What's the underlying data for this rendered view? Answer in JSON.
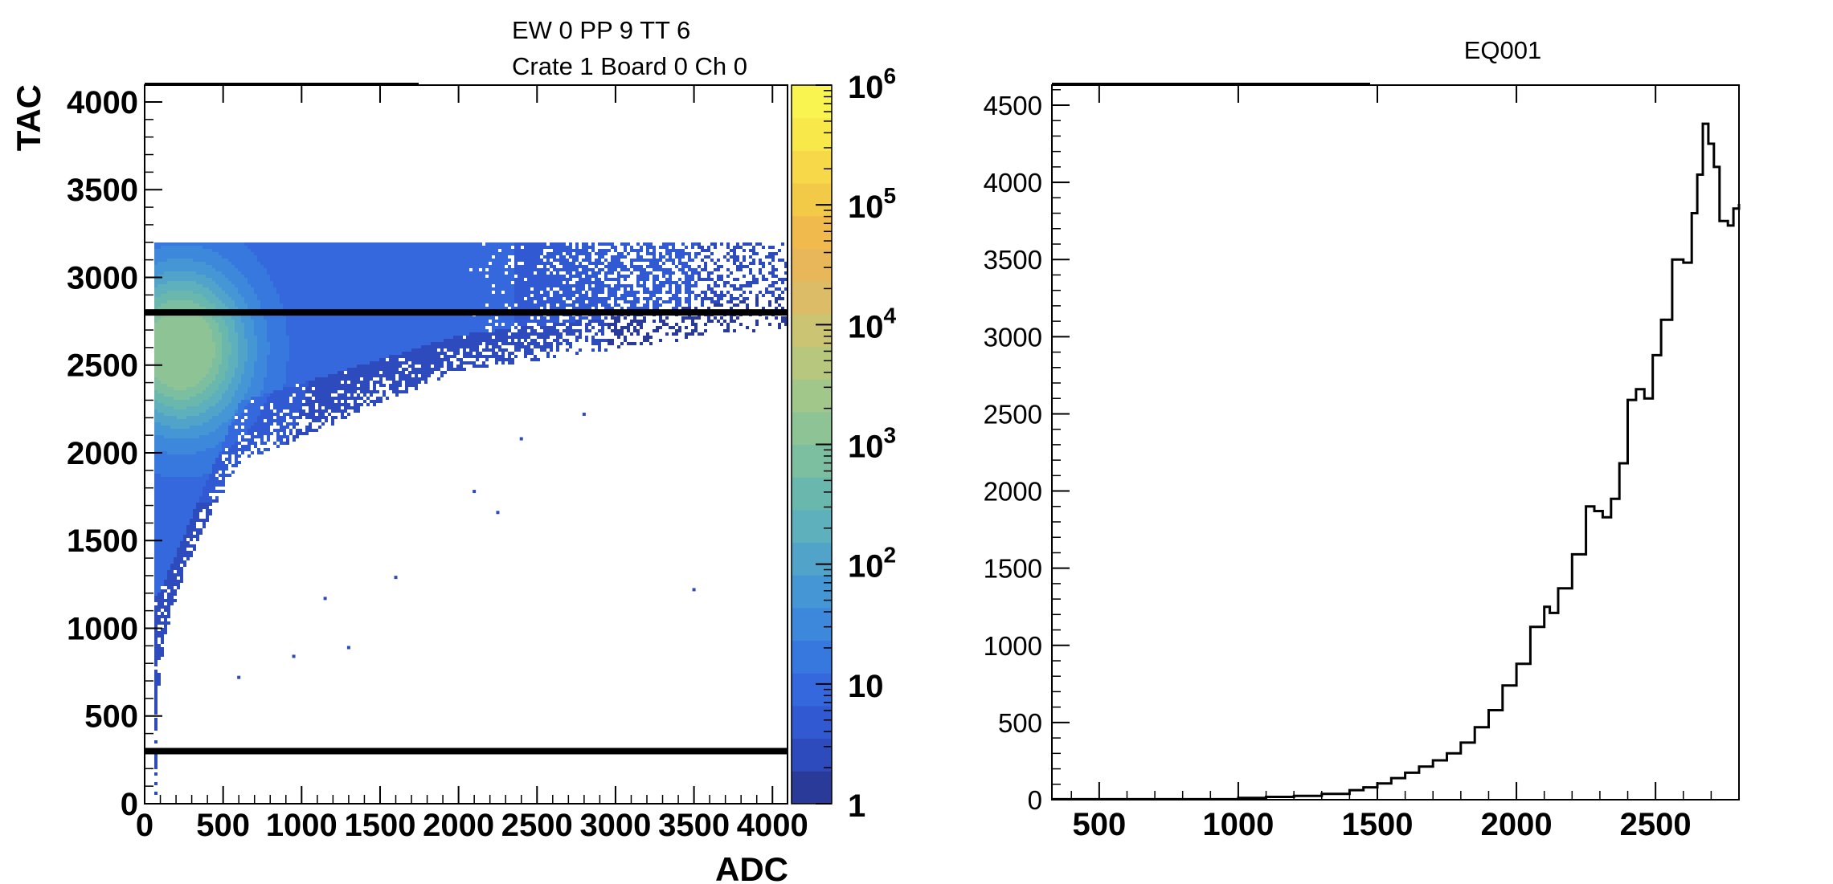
{
  "chart_data": [
    {
      "type": "heatmap",
      "title_lines": [
        "EW 0 PP 9 TT 6",
        "Crate 1 Board 0 Ch 0"
      ],
      "xlabel": "ADC",
      "ylabel": "TAC",
      "xlim": [
        0,
        4096
      ],
      "ylim": [
        0,
        4096
      ],
      "xticks": [
        0,
        500,
        1000,
        1500,
        2000,
        2500,
        3000,
        3500,
        4000
      ],
      "yticks": [
        0,
        500,
        1000,
        1500,
        2000,
        2500,
        3000,
        3500,
        4000
      ],
      "z_scale": "log",
      "zlim": [
        1,
        1000000
      ],
      "colorbar_ticks": [
        {
          "value": 1,
          "label": "1"
        },
        {
          "value": 10,
          "label": "10"
        },
        {
          "value": 100,
          "base": "10",
          "exp": "2"
        },
        {
          "value": 1000,
          "base": "10",
          "exp": "3"
        },
        {
          "value": 10000,
          "base": "10",
          "exp": "4"
        },
        {
          "value": 100000,
          "base": "10",
          "exp": "5"
        },
        {
          "value": 1000000,
          "base": "10",
          "exp": "6"
        }
      ],
      "palette": [
        "#2a3a99",
        "#2d4bbd",
        "#3159d2",
        "#3468dc",
        "#3778de",
        "#3d88db",
        "#4596d4",
        "#51a3c9",
        "#5db0bc",
        "#6ab8ad",
        "#7bbfa0",
        "#8ec495",
        "#a2c78a",
        "#b7c77e",
        "#cbc473",
        "#dcbc66",
        "#e8b75a",
        "#f0bb4c",
        "#f3c948",
        "#f6d848",
        "#f8e84a",
        "#f9f44f"
      ],
      "horizontal_lines": [
        300,
        2800
      ],
      "band_top": 3200,
      "outlier_points": [
        [
          3500,
          1220
        ],
        [
          2250,
          1660
        ],
        [
          2100,
          1780
        ],
        [
          1600,
          1290
        ],
        [
          1300,
          890
        ],
        [
          1150,
          1170
        ],
        [
          2800,
          2220
        ],
        [
          2400,
          2080
        ],
        [
          950,
          840
        ],
        [
          600,
          720
        ]
      ]
    },
    {
      "type": "histogram",
      "title": "EQ001",
      "xlim": [
        330,
        2800
      ],
      "ylim": [
        0,
        4630
      ],
      "xticks": [
        500,
        1000,
        1500,
        2000,
        2500
      ],
      "yticks": [
        0,
        500,
        1000,
        1500,
        2000,
        2500,
        3000,
        3500,
        4000,
        4500
      ],
      "points": [
        [
          330,
          3
        ],
        [
          800,
          3
        ],
        [
          1000,
          12
        ],
        [
          1100,
          18
        ],
        [
          1200,
          25
        ],
        [
          1300,
          38
        ],
        [
          1400,
          62
        ],
        [
          1450,
          80
        ],
        [
          1500,
          105
        ],
        [
          1550,
          140
        ],
        [
          1600,
          175
        ],
        [
          1650,
          215
        ],
        [
          1700,
          255
        ],
        [
          1750,
          300
        ],
        [
          1800,
          370
        ],
        [
          1850,
          470
        ],
        [
          1900,
          580
        ],
        [
          1950,
          740
        ],
        [
          2000,
          880
        ],
        [
          2050,
          1120
        ],
        [
          2100,
          1250
        ],
        [
          2120,
          1210
        ],
        [
          2150,
          1370
        ],
        [
          2200,
          1590
        ],
        [
          2250,
          1900
        ],
        [
          2280,
          1870
        ],
        [
          2310,
          1830
        ],
        [
          2340,
          1950
        ],
        [
          2370,
          2180
        ],
        [
          2400,
          2590
        ],
        [
          2430,
          2660
        ],
        [
          2460,
          2600
        ],
        [
          2490,
          2880
        ],
        [
          2520,
          3110
        ],
        [
          2560,
          3500
        ],
        [
          2600,
          3480
        ],
        [
          2630,
          3800
        ],
        [
          2650,
          4050
        ],
        [
          2670,
          4380
        ],
        [
          2690,
          4250
        ],
        [
          2710,
          4100
        ],
        [
          2730,
          3750
        ],
        [
          2760,
          3720
        ],
        [
          2780,
          3830
        ],
        [
          2800,
          3860
        ]
      ]
    }
  ]
}
